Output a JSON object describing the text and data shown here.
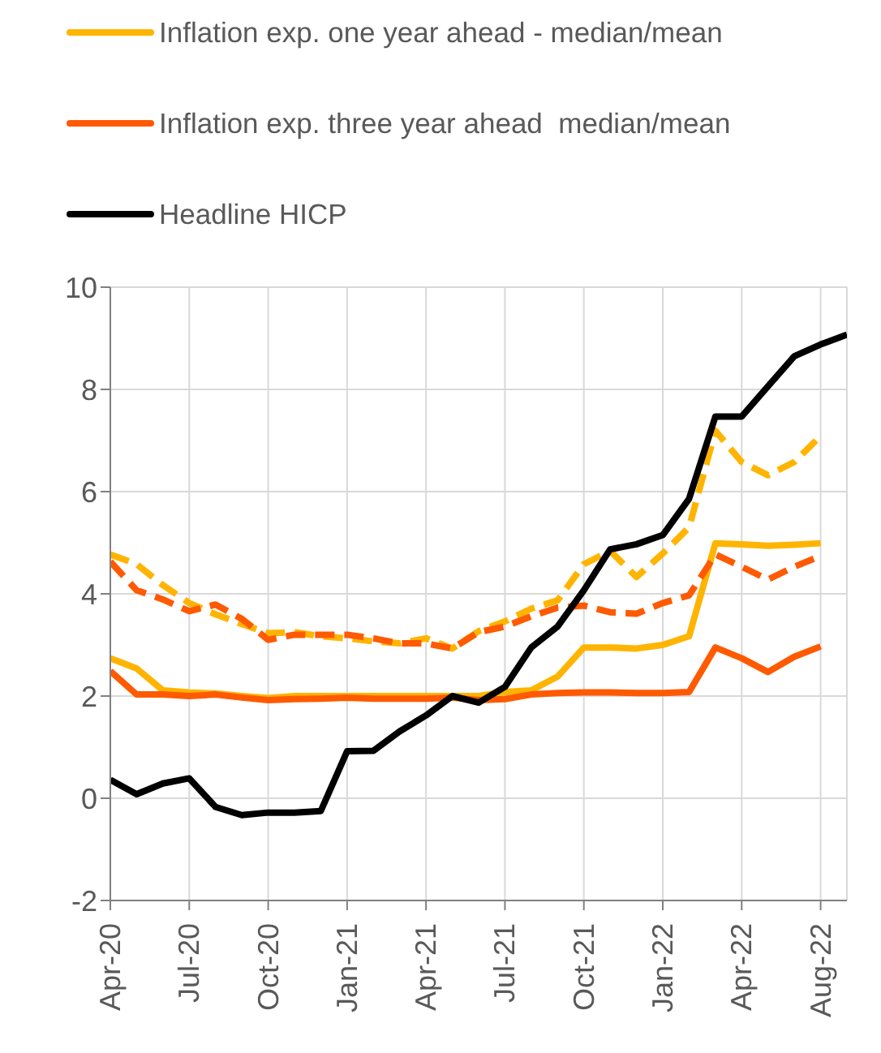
{
  "chart_data": {
    "type": "line",
    "categories": [
      "Apr-20",
      null,
      null,
      "Jul-20",
      null,
      null,
      "Oct-20",
      null,
      null,
      "Jan-21",
      null,
      null,
      "Apr-21",
      null,
      null,
      "Jul-21",
      null,
      null,
      "Oct-21",
      null,
      null,
      "Jan-22",
      null,
      null,
      "Apr-22",
      null,
      null,
      "Aug-22",
      null
    ],
    "series": [
      {
        "name": "Inflation exp. one year ahead - median/mean",
        "color": "#ffb400",
        "line_style": "solid",
        "values": [
          2.74,
          2.54,
          2.11,
          2.07,
          2.05,
          2.0,
          1.96,
          2.0,
          2.0,
          2.0,
          2.0,
          2.0,
          2.0,
          2.0,
          2.0,
          2.08,
          2.11,
          2.38,
          2.95,
          2.95,
          2.93,
          3.0,
          3.17,
          4.99,
          4.97,
          4.94,
          4.96,
          4.99,
          null
        ]
      },
      {
        "name": "Inflation exp. three year ahead  median/mean",
        "color": "#ff5a00",
        "line_style": "solid",
        "values": [
          2.49,
          2.03,
          2.03,
          2.0,
          2.03,
          1.97,
          1.92,
          1.94,
          1.95,
          1.97,
          1.95,
          1.95,
          1.95,
          1.97,
          1.92,
          1.94,
          2.03,
          2.06,
          2.07,
          2.07,
          2.06,
          2.06,
          2.08,
          2.95,
          2.74,
          2.47,
          2.77,
          2.97,
          null
        ]
      },
      {
        "color": "#ffb400",
        "line_style": "dashed",
        "values": [
          4.77,
          4.58,
          4.17,
          3.82,
          3.6,
          3.41,
          3.23,
          3.25,
          3.17,
          3.13,
          3.07,
          3.03,
          3.13,
          2.93,
          3.27,
          3.46,
          3.71,
          3.87,
          4.58,
          4.84,
          4.33,
          4.79,
          5.3,
          7.19,
          6.58,
          6.32,
          6.58,
          7.09,
          null
        ]
      },
      {
        "color": "#ff5a00",
        "line_style": "dashed",
        "values": [
          4.63,
          4.07,
          3.89,
          3.66,
          3.79,
          3.51,
          3.1,
          3.2,
          3.2,
          3.2,
          3.13,
          3.03,
          3.03,
          2.93,
          3.25,
          3.36,
          3.56,
          3.73,
          3.77,
          3.64,
          3.61,
          3.82,
          3.97,
          4.77,
          4.53,
          4.28,
          4.53,
          4.74,
          null
        ]
      },
      {
        "name": "Headline HICP",
        "color": "#000000",
        "line_style": "solid",
        "values": [
          0.36,
          0.08,
          0.29,
          0.39,
          -0.17,
          -0.33,
          -0.28,
          -0.28,
          -0.25,
          0.92,
          0.93,
          1.31,
          1.62,
          2.0,
          1.87,
          2.18,
          2.95,
          3.36,
          4.07,
          4.87,
          4.97,
          5.15,
          5.86,
          7.47,
          7.47,
          8.06,
          8.65,
          8.88,
          9.07
        ]
      }
    ],
    "ylim": [
      -2,
      10
    ],
    "yticks": [
      -2,
      0,
      2,
      4,
      6,
      8,
      10
    ],
    "grid": true,
    "legend": "top",
    "marker": "none"
  }
}
